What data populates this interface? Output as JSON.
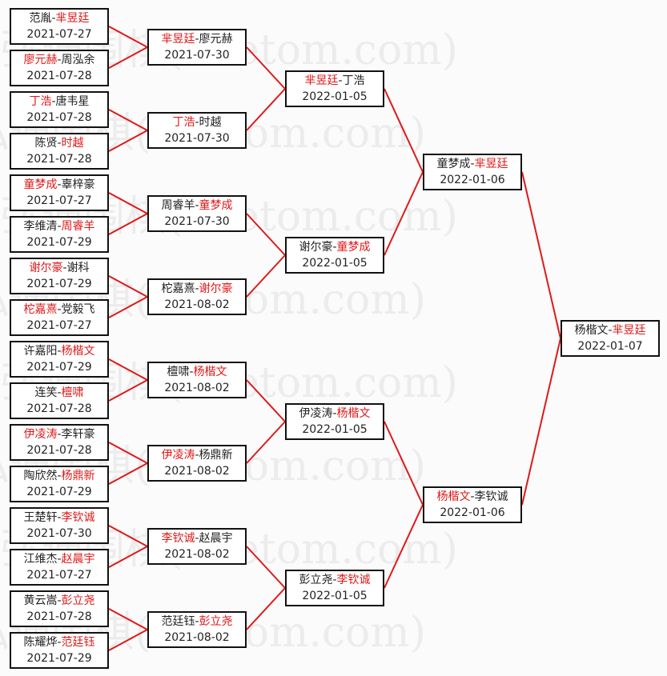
{
  "watermark": "弘通围棋(hoetom.com)",
  "colors": {
    "winner": "#e01818",
    "line": "#e01818",
    "border": "#111111"
  },
  "rounds": [
    [
      {
        "p1": "范胤",
        "p2": "芈昱廷",
        "winner": 2,
        "date": "2021-07-27"
      },
      {
        "p1": "廖元赫",
        "p2": "周泓余",
        "winner": 1,
        "date": "2021-07-28"
      },
      {
        "p1": "丁浩",
        "p2": "唐韦星",
        "winner": 1,
        "date": "2021-07-28"
      },
      {
        "p1": "陈贤",
        "p2": "时越",
        "winner": 2,
        "date": "2021-07-28"
      },
      {
        "p1": "童梦成",
        "p2": "辜梓豪",
        "winner": 1,
        "date": "2021-07-27"
      },
      {
        "p1": "李维清",
        "p2": "周睿羊",
        "winner": 2,
        "date": "2021-07-29"
      },
      {
        "p1": "谢尔豪",
        "p2": "谢科",
        "winner": 1,
        "date": "2021-07-29"
      },
      {
        "p1": "柁嘉熹",
        "p2": "党毅飞",
        "winner": 1,
        "date": "2021-07-27"
      },
      {
        "p1": "许嘉阳",
        "p2": "杨楷文",
        "winner": 2,
        "date": "2021-07-29"
      },
      {
        "p1": "连笑",
        "p2": "檀啸",
        "winner": 2,
        "date": "2021-07-28"
      },
      {
        "p1": "伊凌涛",
        "p2": "李轩豪",
        "winner": 1,
        "date": "2021-07-28"
      },
      {
        "p1": "陶欣然",
        "p2": "杨鼎新",
        "winner": 2,
        "date": "2021-07-29"
      },
      {
        "p1": "王楚轩",
        "p2": "李钦诚",
        "winner": 2,
        "date": "2021-07-30"
      },
      {
        "p1": "江维杰",
        "p2": "赵晨宇",
        "winner": 2,
        "date": "2021-07-27"
      },
      {
        "p1": "黄云嵩",
        "p2": "彭立尧",
        "winner": 2,
        "date": "2021-07-28"
      },
      {
        "p1": "陈耀烨",
        "p2": "范廷钰",
        "winner": 2,
        "date": "2021-07-29"
      }
    ],
    [
      {
        "p1": "芈昱廷",
        "p2": "廖元赫",
        "winner": 1,
        "date": "2021-07-30"
      },
      {
        "p1": "丁浩",
        "p2": "时越",
        "winner": 1,
        "date": "2021-07-30"
      },
      {
        "p1": "周睿羊",
        "p2": "童梦成",
        "winner": 2,
        "date": "2021-07-30"
      },
      {
        "p1": "柁嘉熹",
        "p2": "谢尔豪",
        "winner": 2,
        "date": "2021-08-02"
      },
      {
        "p1": "檀啸",
        "p2": "杨楷文",
        "winner": 2,
        "date": "2021-08-02"
      },
      {
        "p1": "伊凌涛",
        "p2": "杨鼎新",
        "winner": 1,
        "date": "2021-08-02"
      },
      {
        "p1": "李钦诚",
        "p2": "赵晨宇",
        "winner": 1,
        "date": "2021-08-02"
      },
      {
        "p1": "范廷钰",
        "p2": "彭立尧",
        "winner": 2,
        "date": "2021-08-02"
      }
    ],
    [
      {
        "p1": "芈昱廷",
        "p2": "丁浩",
        "winner": 1,
        "date": "2022-01-05"
      },
      {
        "p1": "谢尔豪",
        "p2": "童梦成",
        "winner": 2,
        "date": "2022-01-05"
      },
      {
        "p1": "伊凌涛",
        "p2": "杨楷文",
        "winner": 2,
        "date": "2022-01-05"
      },
      {
        "p1": "彭立尧",
        "p2": "李钦诚",
        "winner": 2,
        "date": "2022-01-05"
      }
    ],
    [
      {
        "p1": "童梦成",
        "p2": "芈昱廷",
        "winner": 2,
        "date": "2022-01-06"
      },
      {
        "p1": "杨楷文",
        "p2": "李钦诚",
        "winner": 1,
        "date": "2022-01-06"
      }
    ],
    [
      {
        "p1": "杨楷文",
        "p2": "芈昱廷",
        "winner": 2,
        "date": "2022-01-07"
      }
    ]
  ]
}
